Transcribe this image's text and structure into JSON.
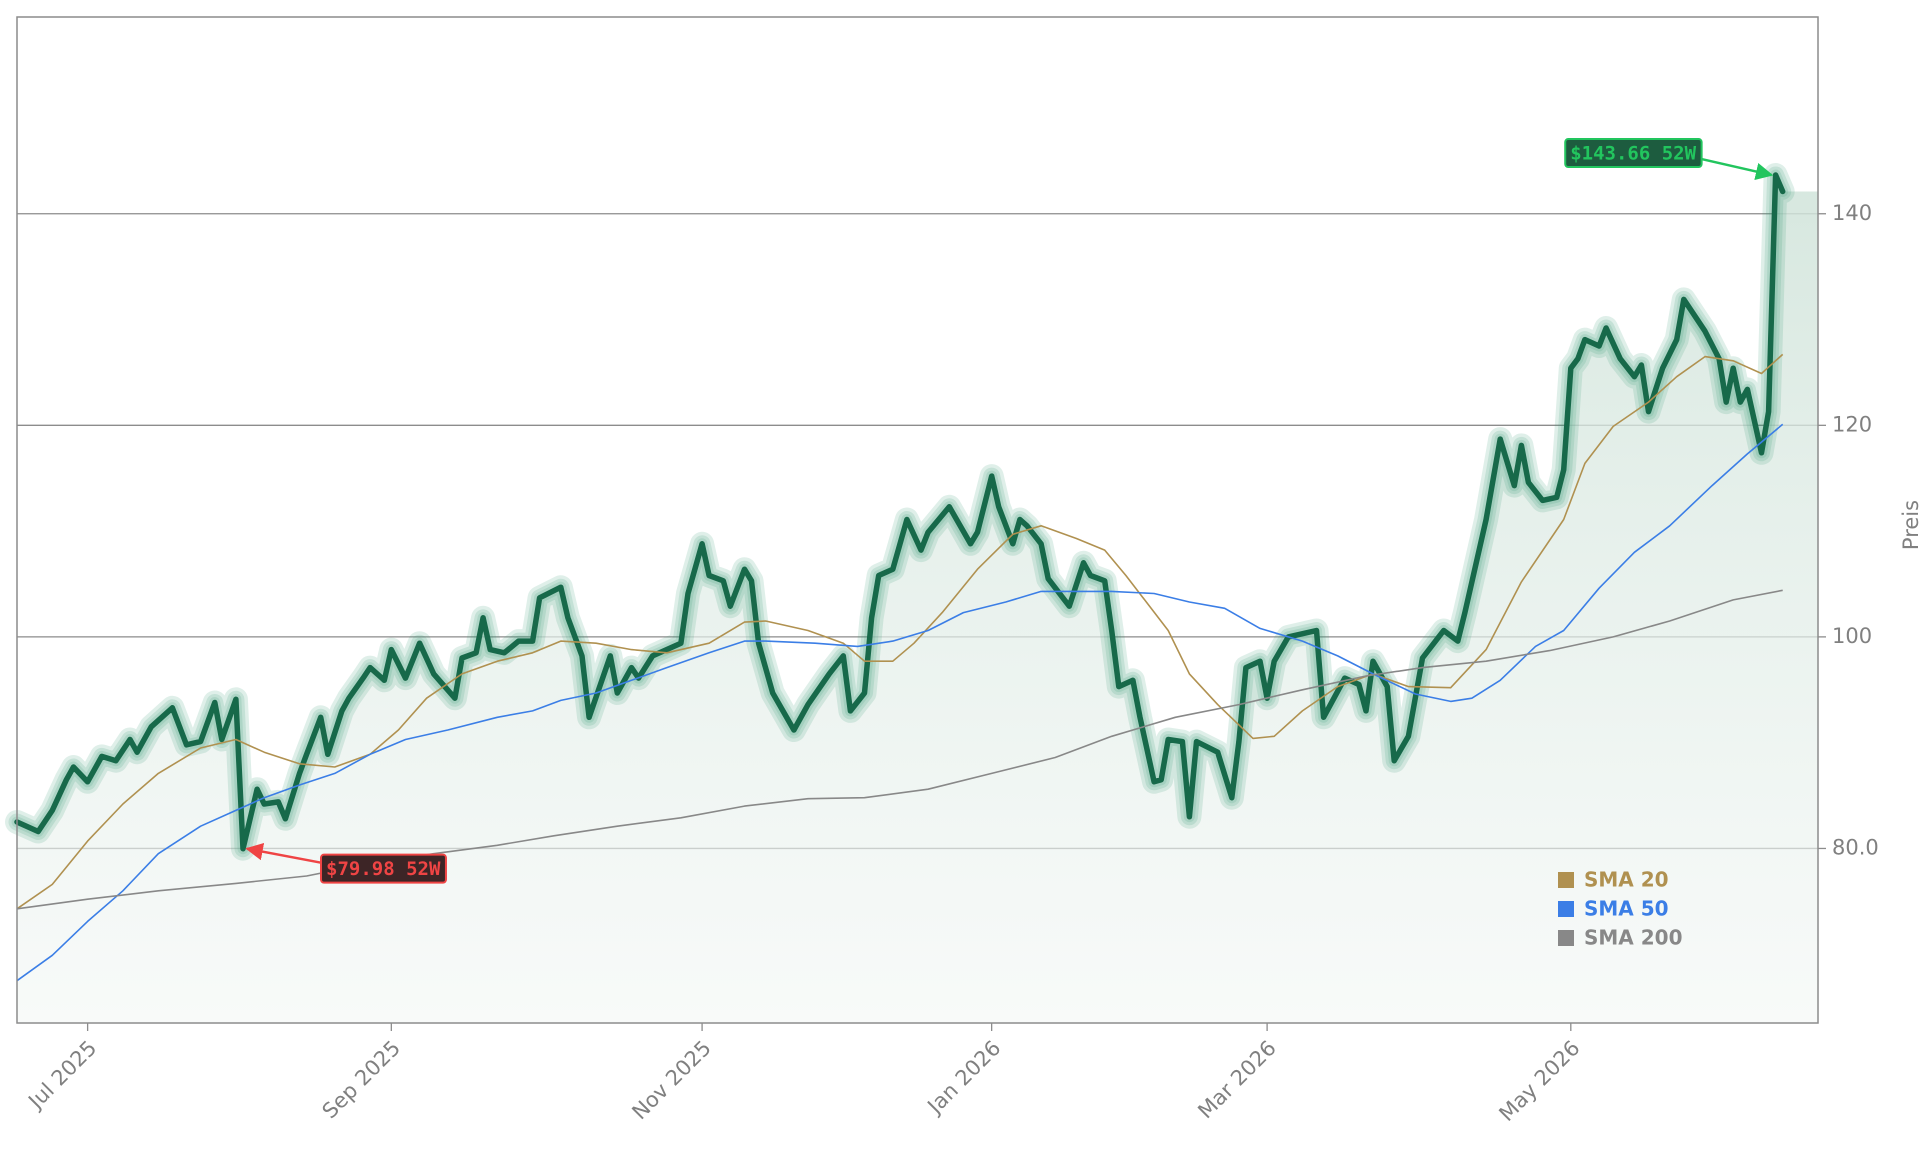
{
  "chart_data": {
    "type": "line",
    "y_label": "Preis",
    "high_label": "$143.66 52W",
    "low_label": "$79.98 52W",
    "xlim": [
      0,
      255
    ],
    "ylim": [
      63.5,
      158.6
    ],
    "xticks": [
      {
        "value": 10,
        "label": "Jul 2025"
      },
      {
        "value": 53,
        "label": "Sep 2025"
      },
      {
        "value": 97,
        "label": "Nov 2025"
      },
      {
        "value": 138,
        "label": "Jan 2026"
      },
      {
        "value": 177,
        "label": "Mar 2026"
      },
      {
        "value": 220,
        "label": "May 2026"
      }
    ],
    "yticks": [
      {
        "value": 80,
        "label": "80.0"
      },
      100,
      120,
      140
    ],
    "grid": true,
    "legend": "lower right",
    "series": [
      {
        "color": "#17694a",
        "x": [
          0,
          3,
          5,
          7,
          8,
          10,
          12,
          14,
          16,
          17,
          19,
          22,
          24,
          26,
          28,
          29,
          31,
          32,
          34,
          35,
          37,
          38,
          40,
          41,
          43,
          44,
          46,
          47,
          49,
          50,
          52,
          53,
          55,
          57,
          59,
          62,
          63,
          65,
          66,
          67,
          69,
          71,
          73,
          74,
          77,
          78,
          80,
          81,
          84,
          85,
          87,
          88,
          90,
          94,
          95,
          97,
          98,
          100,
          101,
          103,
          104,
          105,
          107,
          110,
          112,
          115,
          117,
          118,
          120,
          121,
          122,
          124,
          126,
          128,
          129,
          132,
          135,
          136,
          138,
          139,
          141,
          142,
          143,
          145,
          146,
          149,
          151,
          152,
          154,
          155,
          156,
          158,
          159,
          161,
          162,
          163,
          165,
          166,
          167,
          170,
          172,
          173,
          174,
          176,
          177,
          178,
          180,
          184,
          185,
          188,
          190,
          191,
          192,
          194,
          195,
          197,
          199,
          202,
          204,
          205,
          208,
          210,
          212,
          213,
          214,
          216,
          218,
          219,
          220,
          221,
          222,
          224,
          225,
          227,
          229,
          230,
          231,
          233,
          235,
          236,
          239,
          241,
          242,
          243,
          244,
          245,
          247,
          248,
          249,
          250
        ],
        "values": [
          82.5,
          81.6,
          83.6,
          86.5,
          87.7,
          86.3,
          88.7,
          88.3,
          90.3,
          89.1,
          91.5,
          93.3,
          89.8,
          90.1,
          93.8,
          90.3,
          94.1,
          79.98,
          85.6,
          84.2,
          84.4,
          82.8,
          87.1,
          88.9,
          92.4,
          88.9,
          93.0,
          94.2,
          96.1,
          97.1,
          95.9,
          98.8,
          96.1,
          99.4,
          96.5,
          94.2,
          98.0,
          98.5,
          101.8,
          98.8,
          98.5,
          99.6,
          99.6,
          103.7,
          104.7,
          101.8,
          98.2,
          92.4,
          98.2,
          94.7,
          97.1,
          96.1,
          98.2,
          99.4,
          104.1,
          108.8,
          105.8,
          105.3,
          102.9,
          106.4,
          105.3,
          99.4,
          94.7,
          91.2,
          93.6,
          96.5,
          98.2,
          93.0,
          94.7,
          101.8,
          105.8,
          106.4,
          111.1,
          108.2,
          109.9,
          112.3,
          108.8,
          109.9,
          115.2,
          112.3,
          108.8,
          111.1,
          110.5,
          108.8,
          105.5,
          102.9,
          107.0,
          105.8,
          105.3,
          100.6,
          95.3,
          95.9,
          92.4,
          86.3,
          86.5,
          90.3,
          90.1,
          83.0,
          90.1,
          89.1,
          84.8,
          90.1,
          97.1,
          97.7,
          94.2,
          97.7,
          100.0,
          100.6,
          92.4,
          96.1,
          95.5,
          93.0,
          97.7,
          95.3,
          88.3,
          90.6,
          98.0,
          100.6,
          99.6,
          102.3,
          111.1,
          118.7,
          114.3,
          118.1,
          114.6,
          112.9,
          113.2,
          115.8,
          125.4,
          126.3,
          128.1,
          127.5,
          129.2,
          126.3,
          124.6,
          125.7,
          121.3,
          125.4,
          128.1,
          131.9,
          128.9,
          126.3,
          122.2,
          125.4,
          122.2,
          123.4,
          117.4,
          121.3,
          143.66,
          142.1
        ]
      },
      {
        "name": "SMA 20",
        "color": "#b09150",
        "x": [
          0,
          5,
          10,
          15,
          20,
          26,
          31,
          35,
          40,
          45,
          50,
          54,
          58,
          63,
          68,
          73,
          77,
          82,
          87,
          92,
          98,
          103,
          106,
          112,
          117,
          120,
          124,
          127,
          131,
          136,
          141,
          145,
          150,
          154,
          157,
          163,
          166,
          170,
          175,
          178,
          182,
          187,
          192,
          197,
          203,
          208,
          213,
          219,
          222,
          226,
          231,
          235,
          239,
          243,
          247,
          250
        ],
        "values": [
          74.3,
          76.6,
          80.7,
          84.2,
          87.1,
          89.5,
          90.3,
          89.1,
          88.0,
          87.7,
          88.9,
          91.2,
          94.2,
          96.5,
          97.7,
          98.5,
          99.6,
          99.4,
          98.8,
          98.5,
          99.4,
          101.4,
          101.5,
          100.6,
          99.4,
          97.7,
          97.7,
          99.4,
          102.3,
          106.4,
          109.7,
          110.5,
          109.3,
          108.2,
          105.8,
          100.6,
          96.5,
          93.6,
          90.4,
          90.6,
          93.0,
          95.3,
          96.5,
          95.3,
          95.2,
          98.8,
          105.2,
          111.1,
          116.4,
          119.9,
          122.2,
          124.6,
          126.5,
          126.1,
          124.9,
          126.7
        ]
      },
      {
        "name": "SMA 50",
        "color": "#3b7ee6",
        "x": [
          0,
          5,
          10,
          15,
          20,
          26,
          31,
          35,
          40,
          45,
          50,
          55,
          61,
          68,
          73,
          77,
          82,
          87,
          92,
          98,
          103,
          106,
          113,
          119,
          124,
          129,
          134,
          140,
          145,
          150,
          155,
          161,
          166,
          171,
          176,
          182,
          187,
          192,
          198,
          203,
          206,
          210,
          215,
          219,
          224,
          229,
          234,
          240,
          245,
          250
        ],
        "values": [
          67.5,
          69.9,
          73.1,
          76.0,
          79.5,
          82.1,
          83.6,
          84.8,
          86.0,
          87.1,
          88.9,
          90.3,
          91.2,
          92.4,
          93.0,
          94.0,
          94.7,
          95.9,
          97.1,
          98.5,
          99.6,
          99.6,
          99.4,
          99.1,
          99.6,
          100.6,
          102.3,
          103.3,
          104.3,
          104.3,
          104.3,
          104.1,
          103.3,
          102.7,
          100.8,
          99.6,
          98.2,
          96.5,
          94.6,
          93.9,
          94.2,
          95.9,
          99.1,
          100.6,
          104.6,
          108.0,
          110.5,
          114.3,
          117.3,
          120.1
        ]
      },
      {
        "name": "SMA 200",
        "color": "#888888",
        "x": [
          0,
          10,
          20,
          31,
          41,
          50,
          59,
          68,
          76,
          85,
          94,
          103,
          112,
          120,
          129,
          138,
          147,
          155,
          164,
          173,
          182,
          191,
          199,
          208,
          217,
          226,
          234,
          243,
          250
        ],
        "values": [
          74.3,
          75.2,
          76.0,
          76.7,
          77.4,
          78.6,
          79.5,
          80.3,
          81.2,
          82.1,
          82.9,
          84.0,
          84.7,
          84.8,
          85.6,
          87.1,
          88.6,
          90.6,
          92.4,
          93.6,
          95.0,
          96.3,
          97.1,
          97.7,
          98.7,
          100.0,
          101.5,
          103.5,
          104.4
        ]
      }
    ]
  }
}
